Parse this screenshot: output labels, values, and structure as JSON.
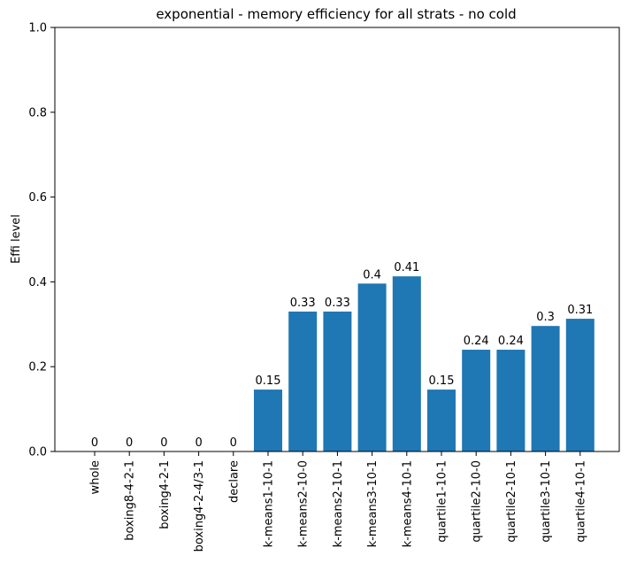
{
  "chart_data": {
    "type": "bar",
    "title": "exponential - memory efficiency for all strats - no cold",
    "xlabel": "",
    "ylabel": "Effi level",
    "ylim": [
      0,
      1.0
    ],
    "yticks": [
      "0.0",
      "0.2",
      "0.4",
      "0.6",
      "0.8",
      "1.0"
    ],
    "grid": false,
    "bar_color": "#1f77b4",
    "categories": [
      "whole",
      "boxing8-4-2-1",
      "boxing4-2-1",
      "boxing4-2-4/3-1",
      "declare",
      "k-means1-10-1",
      "k-means2-10-0",
      "k-means2-10-1",
      "k-means3-10-1",
      "k-means4-10-1",
      "quartile1-10-1",
      "quartile2-10-0",
      "quartile2-10-1",
      "quartile3-10-1",
      "quartile4-10-1"
    ],
    "values": [
      0,
      0,
      0,
      0,
      0,
      0.146,
      0.33,
      0.33,
      0.396,
      0.413,
      0.146,
      0.24,
      0.24,
      0.296,
      0.313
    ],
    "data_labels": [
      "0",
      "0",
      "0",
      "0",
      "0",
      "0.15",
      "0.33",
      "0.33",
      "0.4",
      "0.41",
      "0.15",
      "0.24",
      "0.24",
      "0.3",
      "0.31"
    ]
  }
}
